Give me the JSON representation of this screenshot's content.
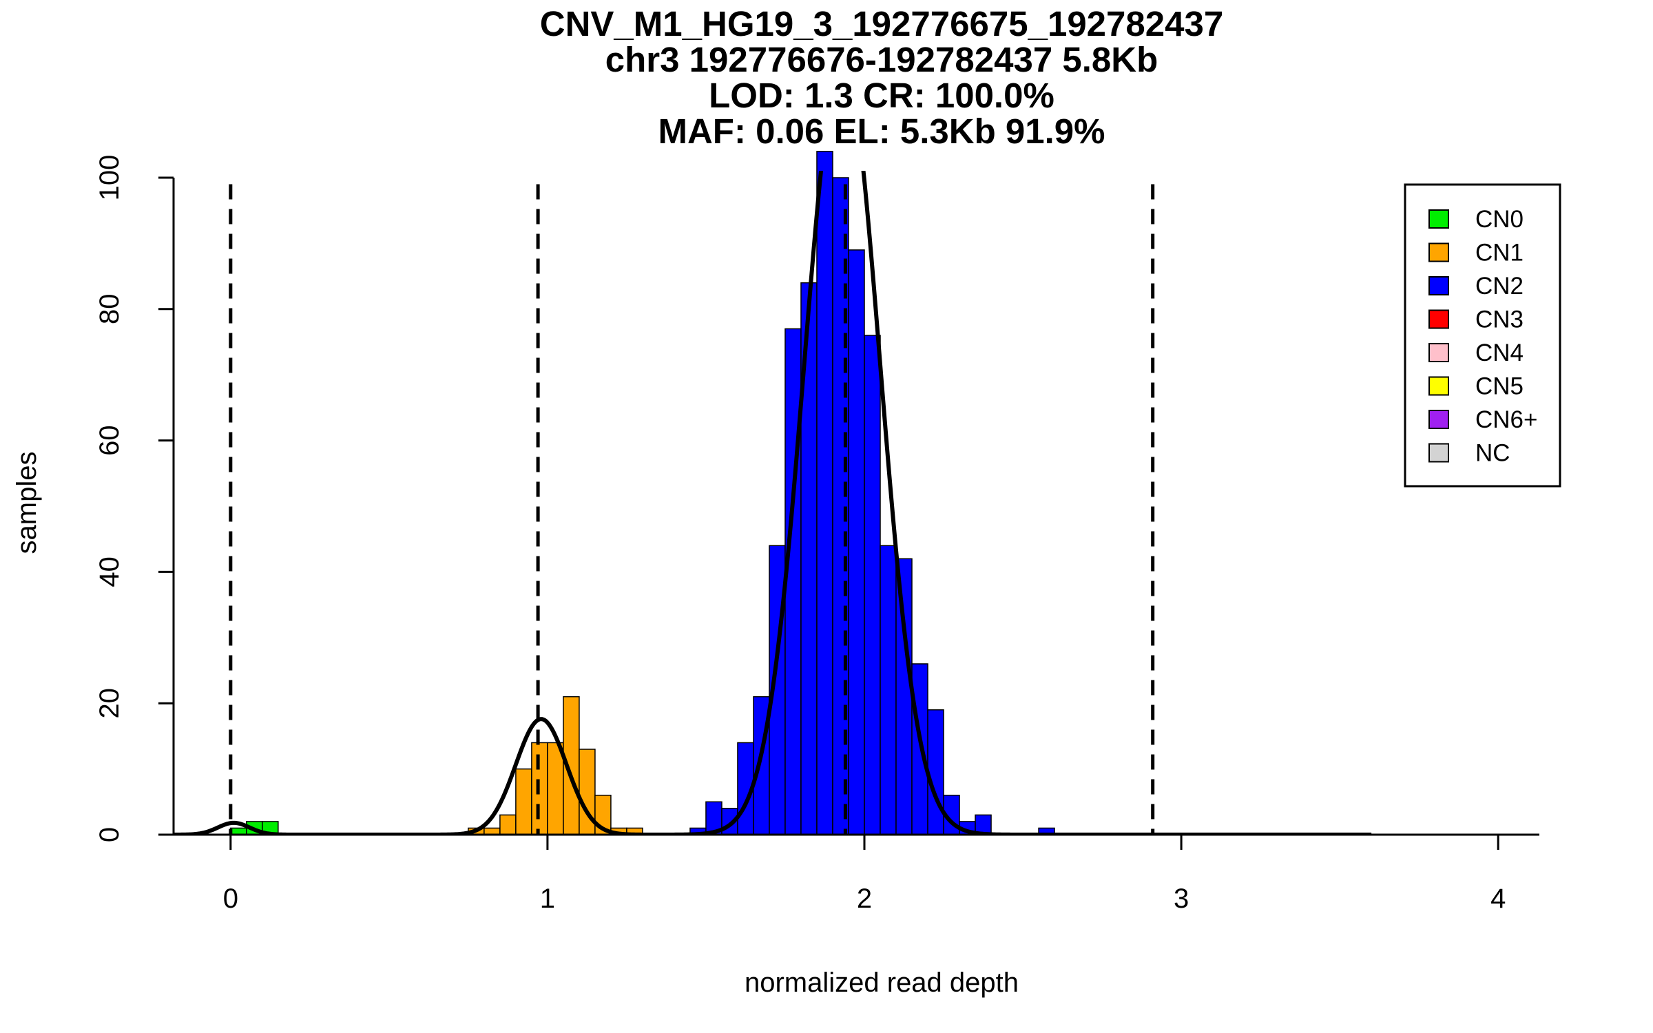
{
  "chart_data": {
    "type": "bar",
    "title_lines": [
      "CNV_M1_HG19_3_192776675_192782437",
      "chr3 192776676-192782437 5.8Kb",
      "LOD: 1.3 CR: 100.0%",
      "MAF: 0.06 EL: 5.3Kb 91.9%"
    ],
    "xlabel": "normalized read depth",
    "ylabel": "samples",
    "xlim": [
      -0.18,
      4.13
    ],
    "ylim": [
      0,
      100
    ],
    "x_ticks": [
      0,
      1,
      2,
      3,
      4
    ],
    "y_ticks": [
      0,
      20,
      40,
      60,
      80,
      100
    ],
    "bin_width": 0.05,
    "series": [
      {
        "name": "CN0",
        "color": "#00ee00",
        "bins": [
          [
            0.0,
            1
          ],
          [
            0.05,
            2
          ],
          [
            0.1,
            2
          ]
        ]
      },
      {
        "name": "CN1",
        "color": "#ffa500",
        "bins": [
          [
            0.75,
            1
          ],
          [
            0.8,
            1
          ],
          [
            0.85,
            3
          ],
          [
            0.9,
            10
          ],
          [
            0.95,
            14
          ],
          [
            1.0,
            14
          ],
          [
            1.05,
            21
          ],
          [
            1.1,
            13
          ],
          [
            1.15,
            6
          ],
          [
            1.2,
            1
          ],
          [
            1.25,
            1
          ]
        ]
      },
      {
        "name": "CN2",
        "color": "#0000ff",
        "bins": [
          [
            1.45,
            1
          ],
          [
            1.5,
            5
          ],
          [
            1.55,
            4
          ],
          [
            1.6,
            14
          ],
          [
            1.65,
            21
          ],
          [
            1.7,
            44
          ],
          [
            1.75,
            77
          ],
          [
            1.8,
            84
          ],
          [
            1.85,
            104
          ],
          [
            1.9,
            100
          ],
          [
            1.95,
            89
          ],
          [
            2.0,
            76
          ],
          [
            2.05,
            44
          ],
          [
            2.1,
            42
          ],
          [
            2.15,
            26
          ],
          [
            2.2,
            19
          ],
          [
            2.25,
            6
          ],
          [
            2.3,
            2
          ],
          [
            2.35,
            3
          ],
          [
            2.55,
            1
          ]
        ]
      },
      {
        "name": "CN3",
        "color": "#ff0000",
        "bins": []
      },
      {
        "name": "CN4",
        "color": "#ffc0cb",
        "bins": []
      },
      {
        "name": "CN5",
        "color": "#ffff00",
        "bins": []
      },
      {
        "name": "CN6+",
        "color": "#a020f0",
        "bins": []
      },
      {
        "name": "NC",
        "color": "#d3d3d3",
        "bins": []
      }
    ],
    "density_curves": [
      {
        "mean": 0.01,
        "sd": 0.05,
        "peak": 1.8
      },
      {
        "mean": 0.98,
        "sd": 0.08,
        "peak": 17.6
      },
      {
        "mean": 1.93,
        "sd": 0.12,
        "peak": 118
      }
    ],
    "dashed_lines_x": [
      0.0,
      0.97,
      1.94,
      2.91
    ],
    "legend_position": "top-right"
  }
}
